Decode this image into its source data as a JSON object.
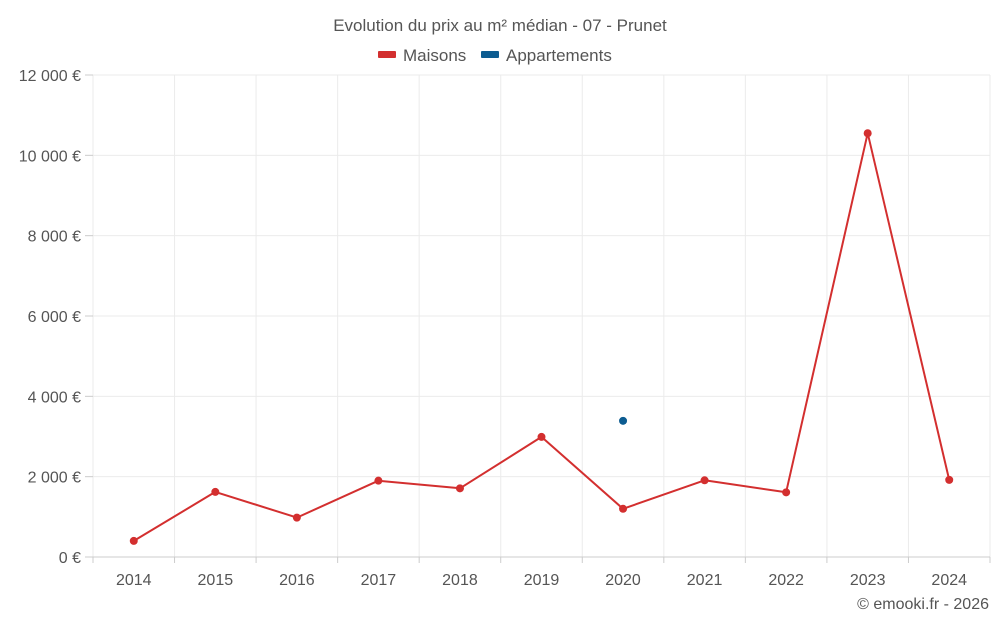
{
  "chart_data": {
    "type": "line",
    "title": "Evolution du prix au m² médian - 07 - Prunet",
    "categories": [
      "2014",
      "2015",
      "2016",
      "2017",
      "2018",
      "2019",
      "2020",
      "2021",
      "2022",
      "2023",
      "2024"
    ],
    "series": [
      {
        "name": "Maisons",
        "color": "#d32f2f",
        "values": [
          400,
          1620,
          980,
          1900,
          1710,
          2990,
          1200,
          1910,
          1610,
          10550,
          1920
        ]
      },
      {
        "name": "Appartements",
        "color": "#0d5c91",
        "values": [
          null,
          null,
          null,
          null,
          null,
          null,
          3390,
          null,
          null,
          null,
          null
        ]
      }
    ],
    "ylim": [
      0,
      12000
    ],
    "yticks": [
      0,
      2000,
      4000,
      6000,
      8000,
      10000,
      12000
    ],
    "ytick_labels": [
      "0 €",
      "2 000 €",
      "4 000 €",
      "6 000 €",
      "8 000 €",
      "10 000 €",
      "12 000 €"
    ],
    "xlabel": "",
    "ylabel": "",
    "legend": "top-center",
    "grid": true
  },
  "credit": "© emooki.fr - 2026"
}
